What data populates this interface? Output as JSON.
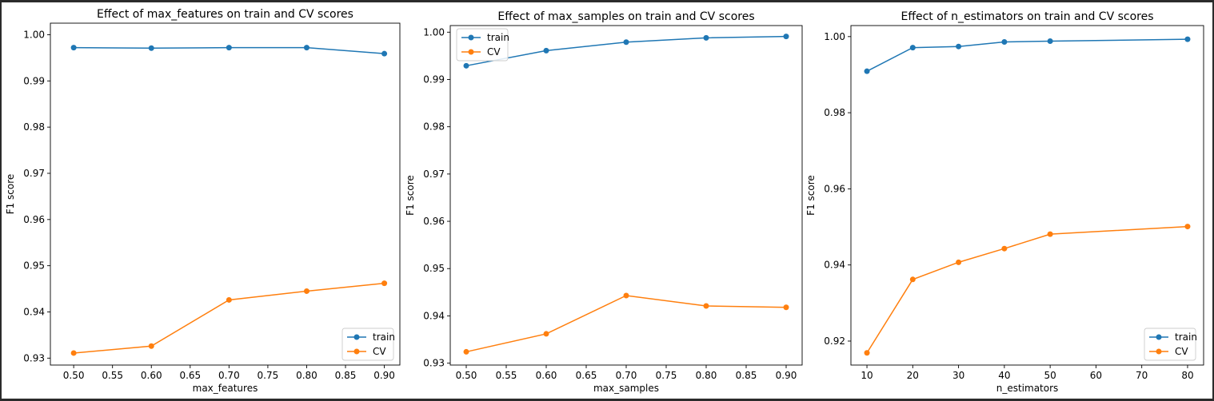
{
  "chart_data": [
    {
      "type": "line",
      "title": "Effect of max_features on train and CV scores",
      "xlabel": "max_features",
      "ylabel": "F1 score",
      "x": [
        0.5,
        0.6,
        0.7,
        0.8,
        0.9
      ],
      "xlim": [
        0.47,
        0.92
      ],
      "ylim": [
        0.9285,
        1.0025
      ],
      "xticks": [
        0.5,
        0.55,
        0.6,
        0.65,
        0.7,
        0.75,
        0.8,
        0.85,
        0.9
      ],
      "xtick_labels": [
        "0.50",
        "0.55",
        "0.60",
        "0.65",
        "0.70",
        "0.75",
        "0.80",
        "0.85",
        "0.90"
      ],
      "yticks": [
        0.93,
        0.94,
        0.95,
        0.96,
        0.97,
        0.98,
        0.99,
        1.0
      ],
      "ytick_labels": [
        "0.93",
        "0.94",
        "0.95",
        "0.96",
        "0.97",
        "0.98",
        "0.99",
        "1.00"
      ],
      "series": [
        {
          "name": "train",
          "color": "#1f77b4",
          "values": [
            0.9972,
            0.9971,
            0.9972,
            0.9972,
            0.9959
          ]
        },
        {
          "name": "CV",
          "color": "#ff7f0e",
          "values": [
            0.9311,
            0.9326,
            0.9426,
            0.9445,
            0.9462
          ]
        }
      ],
      "legend": "lower right",
      "grid": false
    },
    {
      "type": "line",
      "title": "Effect of max_samples on train and CV scores",
      "xlabel": "max_samples",
      "ylabel": "F1 score",
      "x": [
        0.5,
        0.6,
        0.7,
        0.8,
        0.9
      ],
      "xlim": [
        0.48,
        0.92
      ],
      "ylim": [
        0.9296,
        1.0014
      ],
      "xticks": [
        0.5,
        0.55,
        0.6,
        0.65,
        0.7,
        0.75,
        0.8,
        0.85,
        0.9
      ],
      "xtick_labels": [
        "0.50",
        "0.55",
        "0.60",
        "0.65",
        "0.70",
        "0.75",
        "0.80",
        "0.85",
        "0.90"
      ],
      "yticks": [
        0.93,
        0.94,
        0.95,
        0.96,
        0.97,
        0.98,
        0.99,
        1.0
      ],
      "ytick_labels": [
        "0.93",
        "0.94",
        "0.95",
        "0.96",
        "0.97",
        "0.98",
        "0.99",
        "1.00"
      ],
      "series": [
        {
          "name": "train",
          "color": "#1f77b4",
          "values": [
            0.9929,
            0.9961,
            0.9979,
            0.9988,
            0.9991
          ]
        },
        {
          "name": "CV",
          "color": "#ff7f0e",
          "values": [
            0.9324,
            0.9362,
            0.9443,
            0.9421,
            0.9418
          ]
        }
      ],
      "legend": "upper left",
      "grid": false
    },
    {
      "type": "line",
      "title": "Effect of n_estimators on train and CV scores",
      "xlabel": "n_estimators",
      "ylabel": "F1 score",
      "x": [
        10,
        20,
        30,
        40,
        50,
        80
      ],
      "xlim": [
        6.5,
        83.5
      ],
      "ylim": [
        0.9137,
        1.0029
      ],
      "xticks": [
        10,
        20,
        30,
        40,
        50,
        60,
        70,
        80
      ],
      "xtick_labels": [
        "10",
        "20",
        "30",
        "40",
        "50",
        "60",
        "70",
        "80"
      ],
      "yticks": [
        0.92,
        0.94,
        0.96,
        0.98,
        1.0
      ],
      "ytick_labels": [
        "0.92",
        "0.94",
        "0.96",
        "0.98",
        "1.00"
      ],
      "series": [
        {
          "name": "train",
          "color": "#1f77b4",
          "values": [
            0.9909,
            0.9971,
            0.9974,
            0.9986,
            0.9988,
            0.9993
          ]
        },
        {
          "name": "CV",
          "color": "#ff7f0e",
          "values": [
            0.9169,
            0.9362,
            0.9407,
            0.9443,
            0.9481,
            0.9501
          ]
        }
      ],
      "legend": "lower right",
      "grid": false
    }
  ]
}
